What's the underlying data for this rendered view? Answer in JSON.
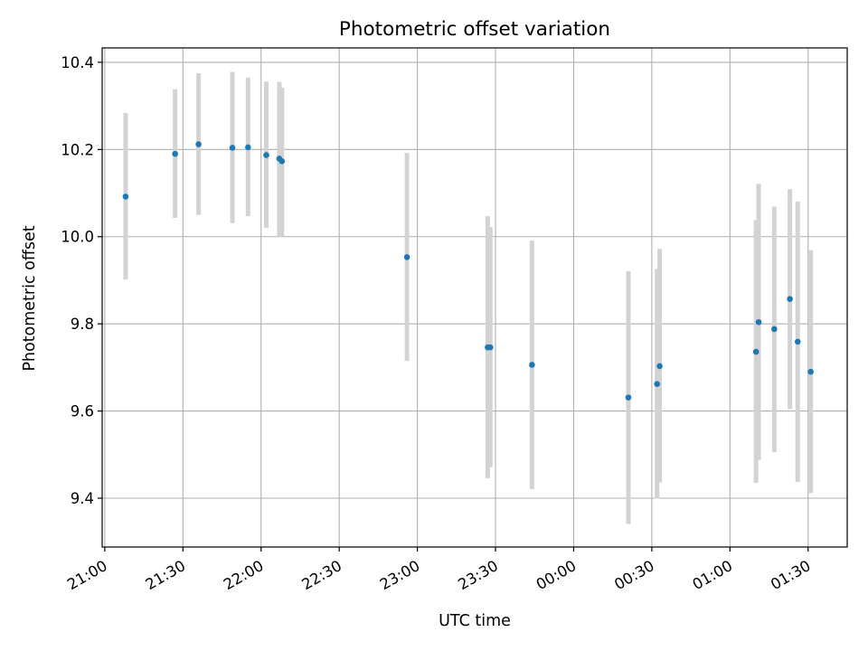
{
  "chart_data": {
    "type": "scatter",
    "title": "Photometric offset variation",
    "xlabel": "UTC time",
    "ylabel": "Photometric offset",
    "grid": true,
    "xlim": [
      "2023-01-01T20:59:00",
      "2023-01-02T01:45:00"
    ],
    "ylim": [
      9.288,
      10.433
    ],
    "x_ticks": [
      {
        "t": "2023-01-01T21:00:00",
        "label": "21:00"
      },
      {
        "t": "2023-01-01T21:30:00",
        "label": "21:30"
      },
      {
        "t": "2023-01-01T22:00:00",
        "label": "22:00"
      },
      {
        "t": "2023-01-01T22:30:00",
        "label": "22:30"
      },
      {
        "t": "2023-01-01T23:00:00",
        "label": "23:00"
      },
      {
        "t": "2023-01-01T23:30:00",
        "label": "23:30"
      },
      {
        "t": "2023-01-02T00:00:00",
        "label": "00:00"
      },
      {
        "t": "2023-01-02T00:30:00",
        "label": "00:30"
      },
      {
        "t": "2023-01-02T01:00:00",
        "label": "01:00"
      },
      {
        "t": "2023-01-02T01:30:00",
        "label": "01:30"
      }
    ],
    "y_ticks": [
      {
        "v": 9.4,
        "label": "9.4"
      },
      {
        "v": 9.6,
        "label": "9.6"
      },
      {
        "v": 9.8,
        "label": "9.8"
      },
      {
        "v": 10.0,
        "label": "10.0"
      },
      {
        "v": 10.2,
        "label": "10.2"
      },
      {
        "v": 10.4,
        "label": "10.4"
      }
    ],
    "marker_color": "#1f77b4",
    "errorbar_color": "#d3d3d3",
    "points": [
      {
        "t": "2023-01-01T21:08:00",
        "y": 10.092,
        "lo": 9.902,
        "hi": 10.284
      },
      {
        "t": "2023-01-01T21:27:00",
        "y": 10.19,
        "lo": 10.043,
        "hi": 10.338
      },
      {
        "t": "2023-01-01T21:36:00",
        "y": 10.212,
        "lo": 10.05,
        "hi": 10.375
      },
      {
        "t": "2023-01-01T21:49:00",
        "y": 10.204,
        "lo": 10.031,
        "hi": 10.378
      },
      {
        "t": "2023-01-01T21:55:00",
        "y": 10.205,
        "lo": 10.047,
        "hi": 10.365
      },
      {
        "t": "2023-01-01T22:02:00",
        "y": 10.187,
        "lo": 10.02,
        "hi": 10.356
      },
      {
        "t": "2023-01-01T22:07:00",
        "y": 10.179,
        "lo": 10.0,
        "hi": 10.355
      },
      {
        "t": "2023-01-01T22:08:00",
        "y": 10.173,
        "lo": 10.0,
        "hi": 10.342
      },
      {
        "t": "2023-01-01T22:56:00",
        "y": 9.953,
        "lo": 9.715,
        "hi": 10.192
      },
      {
        "t": "2023-01-01T23:27:00",
        "y": 9.746,
        "lo": 9.446,
        "hi": 10.047
      },
      {
        "t": "2023-01-01T23:28:00",
        "y": 9.746,
        "lo": 9.471,
        "hi": 10.022
      },
      {
        "t": "2023-01-01T23:44:00",
        "y": 9.706,
        "lo": 9.421,
        "hi": 9.991
      },
      {
        "t": "2023-01-02T00:21:00",
        "y": 9.631,
        "lo": 9.341,
        "hi": 9.921
      },
      {
        "t": "2023-01-02T00:32:00",
        "y": 9.662,
        "lo": 9.399,
        "hi": 9.926
      },
      {
        "t": "2023-01-02T00:33:00",
        "y": 9.703,
        "lo": 9.436,
        "hi": 9.972
      },
      {
        "t": "2023-01-02T01:10:00",
        "y": 9.736,
        "lo": 9.435,
        "hi": 10.038
      },
      {
        "t": "2023-01-02T01:11:00",
        "y": 9.804,
        "lo": 9.488,
        "hi": 10.121
      },
      {
        "t": "2023-01-02T01:17:00",
        "y": 9.788,
        "lo": 9.506,
        "hi": 10.069
      },
      {
        "t": "2023-01-02T01:23:00",
        "y": 9.857,
        "lo": 9.604,
        "hi": 10.109
      },
      {
        "t": "2023-01-02T01:26:00",
        "y": 9.759,
        "lo": 9.437,
        "hi": 10.081
      },
      {
        "t": "2023-01-02T01:31:00",
        "y": 9.69,
        "lo": 9.412,
        "hi": 9.969
      }
    ]
  }
}
